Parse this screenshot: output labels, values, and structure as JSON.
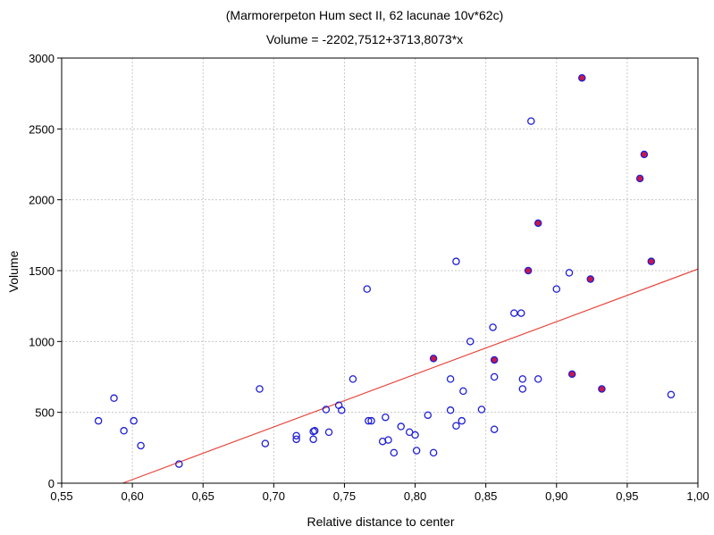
{
  "chart_data": {
    "type": "scatter",
    "title": "(Marmorerpeton Hum sect II, 62 lacunae 10v*62c)",
    "subtitle": "Volume = -2202,7512+3713,8073*x",
    "xlabel": "Relative distance to center",
    "ylabel": "Volume",
    "xlim": [
      0.55,
      1.0
    ],
    "ylim": [
      0,
      3000
    ],
    "grid": true,
    "x_ticks": [
      0.55,
      0.6,
      0.65,
      0.7,
      0.75,
      0.8,
      0.85,
      0.9,
      0.95,
      1.0
    ],
    "x_tick_labels": [
      "0,55",
      "0,60",
      "0,65",
      "0,70",
      "0,75",
      "0,80",
      "0,85",
      "0,90",
      "0,95",
      "1,00"
    ],
    "y_ticks": [
      0,
      500,
      1000,
      1500,
      2000,
      2500,
      3000
    ],
    "y_tick_labels": [
      "0",
      "500",
      "1000",
      "1500",
      "2000",
      "2500",
      "3000"
    ],
    "regression": {
      "intercept": -2202.7512,
      "slope": 3713.8073,
      "color": "#e8463c"
    },
    "colors": {
      "open_marker": "#1f1fd6",
      "filled_marker": "#c8174a",
      "grid": "#c8c8c8"
    },
    "series": [
      {
        "marker": "open",
        "points": [
          [
            0.576,
            440
          ],
          [
            0.587,
            600
          ],
          [
            0.594,
            370
          ],
          [
            0.601,
            440
          ],
          [
            0.606,
            265
          ],
          [
            0.633,
            135
          ],
          [
            0.69,
            665
          ],
          [
            0.694,
            280
          ],
          [
            0.716,
            335
          ],
          [
            0.716,
            310
          ],
          [
            0.728,
            310
          ],
          [
            0.728,
            365
          ],
          [
            0.729,
            370
          ],
          [
            0.737,
            520
          ],
          [
            0.739,
            360
          ],
          [
            0.746,
            550
          ],
          [
            0.748,
            515
          ],
          [
            0.756,
            735
          ],
          [
            0.766,
            1370
          ],
          [
            0.767,
            440
          ],
          [
            0.769,
            440
          ],
          [
            0.777,
            295
          ],
          [
            0.779,
            465
          ],
          [
            0.781,
            305
          ],
          [
            0.785,
            215
          ],
          [
            0.79,
            400
          ],
          [
            0.796,
            360
          ],
          [
            0.8,
            340
          ],
          [
            0.801,
            230
          ],
          [
            0.809,
            480
          ],
          [
            0.813,
            215
          ],
          [
            0.825,
            735
          ],
          [
            0.825,
            515
          ],
          [
            0.829,
            1565
          ],
          [
            0.829,
            405
          ],
          [
            0.833,
            440
          ],
          [
            0.834,
            650
          ],
          [
            0.839,
            1000
          ],
          [
            0.847,
            520
          ],
          [
            0.855,
            1100
          ],
          [
            0.856,
            750
          ],
          [
            0.856,
            380
          ],
          [
            0.87,
            1200
          ],
          [
            0.875,
            1200
          ],
          [
            0.876,
            735
          ],
          [
            0.876,
            665
          ],
          [
            0.882,
            2555
          ],
          [
            0.887,
            735
          ],
          [
            0.9,
            1370
          ],
          [
            0.909,
            1485
          ],
          [
            0.981,
            625
          ]
        ]
      },
      {
        "marker": "filled",
        "points": [
          [
            0.813,
            880
          ],
          [
            0.856,
            870
          ],
          [
            0.88,
            1500
          ],
          [
            0.887,
            1835
          ],
          [
            0.911,
            770
          ],
          [
            0.918,
            2860
          ],
          [
            0.924,
            1440
          ],
          [
            0.932,
            665
          ],
          [
            0.959,
            2150
          ],
          [
            0.962,
            2320
          ],
          [
            0.967,
            1565
          ]
        ]
      }
    ]
  }
}
